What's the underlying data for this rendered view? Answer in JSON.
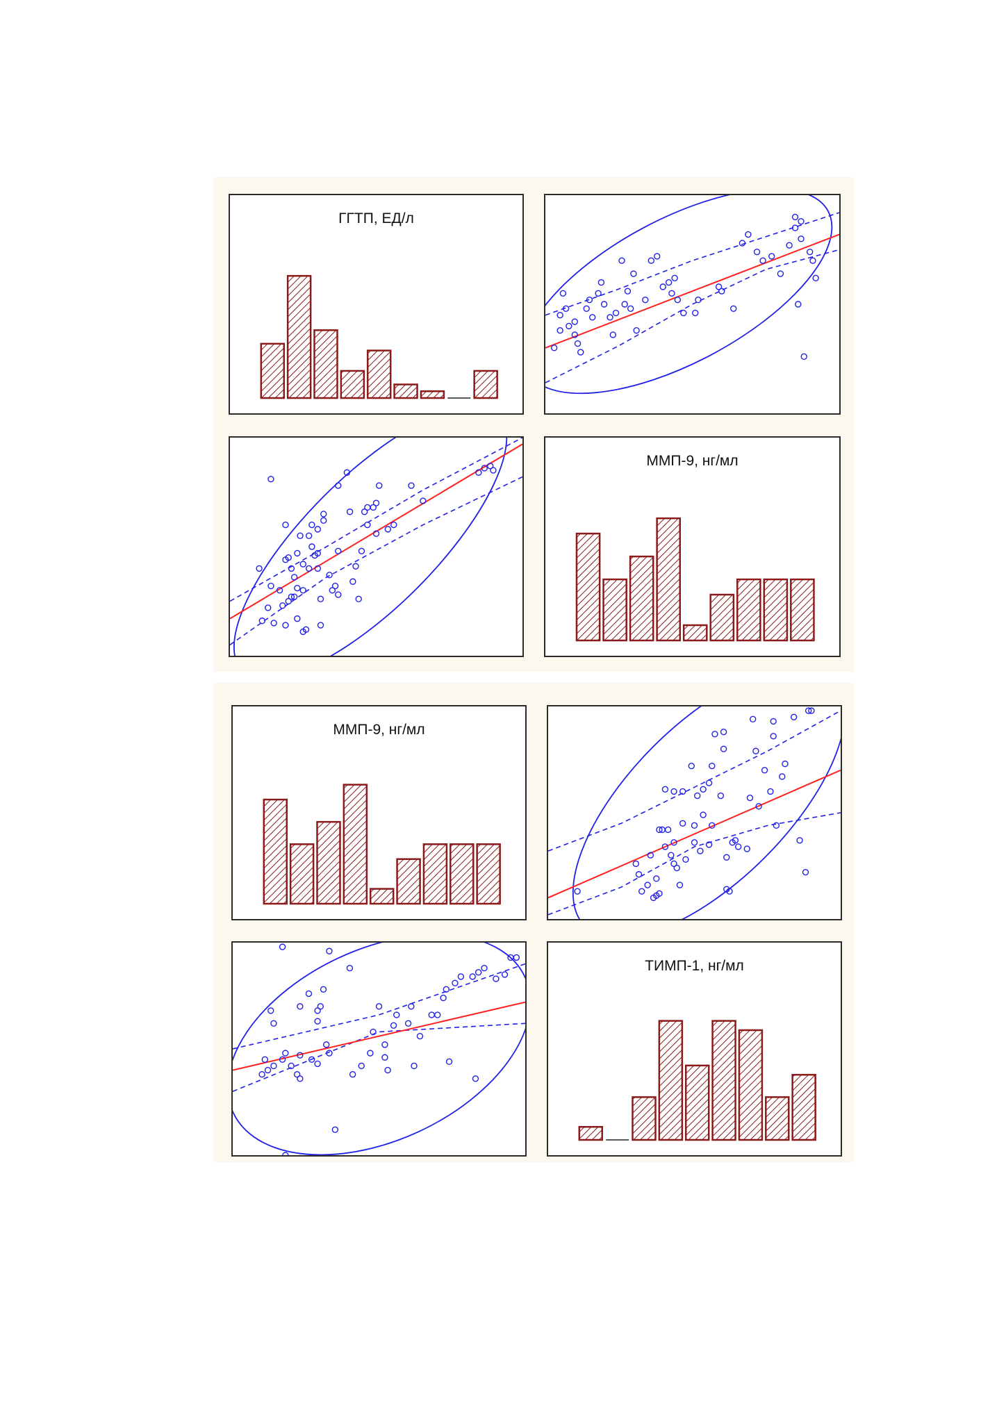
{
  "colors": {
    "bar_stroke": "#8b1a1a",
    "hatch": "#8b1a1a",
    "point": "#2020e8",
    "regression": "#ff2020",
    "confidence_band": "#2020e8",
    "ellipse": "#2020e8",
    "panel_border": "#2b2b2b",
    "figure_background": "#fdf8ef"
  },
  "chart_data": [
    {
      "figure": 1,
      "type": "bar",
      "panel": "histogram",
      "title": "ГГТП, ЕД/л",
      "bar_fill": "hatched",
      "values": [
        4,
        9,
        5,
        2,
        3.5,
        1,
        0.5,
        0,
        2
      ]
    },
    {
      "figure": 1,
      "type": "scatter",
      "panel": "x-ГГТП-y-ММП-9",
      "xlim": [
        0,
        100
      ],
      "ylim": [
        0,
        100
      ],
      "points": [
        [
          3,
          30
        ],
        [
          5,
          38
        ],
        [
          5,
          45
        ],
        [
          6,
          55
        ],
        [
          7,
          48
        ],
        [
          8,
          40
        ],
        [
          10,
          42
        ],
        [
          10,
          36
        ],
        [
          11,
          32
        ],
        [
          12,
          28
        ],
        [
          14,
          48
        ],
        [
          15,
          52
        ],
        [
          16,
          44
        ],
        [
          18,
          55
        ],
        [
          19,
          60
        ],
        [
          20,
          50
        ],
        [
          22,
          44
        ],
        [
          23,
          36
        ],
        [
          24,
          46
        ],
        [
          26,
          70
        ],
        [
          27,
          50
        ],
        [
          28,
          56
        ],
        [
          29,
          48
        ],
        [
          30,
          64
        ],
        [
          31,
          38
        ],
        [
          34,
          52
        ],
        [
          36,
          70
        ],
        [
          38,
          72
        ],
        [
          40,
          58
        ],
        [
          42,
          60
        ],
        [
          43,
          55
        ],
        [
          44,
          62
        ],
        [
          45,
          52
        ],
        [
          47,
          46
        ],
        [
          51,
          46
        ],
        [
          52,
          52
        ],
        [
          59,
          58
        ],
        [
          60,
          56
        ],
        [
          64,
          48
        ],
        [
          67,
          78
        ],
        [
          69,
          82
        ],
        [
          72,
          74
        ],
        [
          74,
          70
        ],
        [
          77,
          72
        ],
        [
          80,
          64
        ],
        [
          83,
          77
        ],
        [
          85,
          85
        ],
        [
          86,
          50
        ],
        [
          87,
          80
        ],
        [
          88,
          26
        ],
        [
          90,
          74
        ],
        [
          91,
          70
        ],
        [
          92,
          62
        ],
        [
          87,
          88
        ],
        [
          85,
          90
        ]
      ],
      "regression": [
        [
          0,
          30
        ],
        [
          100,
          82
        ]
      ],
      "band_upper": [
        [
          0,
          45
        ],
        [
          25,
          57
        ],
        [
          50,
          70
        ],
        [
          75,
          81
        ],
        [
          100,
          92
        ]
      ],
      "band_lower": [
        [
          0,
          14
        ],
        [
          25,
          31
        ],
        [
          50,
          50
        ],
        [
          75,
          66
        ],
        [
          100,
          75
        ]
      ],
      "ellipse": {
        "center": [
          45,
          56
        ],
        "rx": 58,
        "ry": 33,
        "angle_deg": -28
      }
    },
    {
      "figure": 1,
      "type": "scatter",
      "panel": "x-ММП-9-y-ГГТП",
      "xlim": [
        0,
        100
      ],
      "ylim": [
        0,
        100
      ],
      "points": [
        [
          14,
          81
        ],
        [
          10,
          40
        ],
        [
          11,
          16
        ],
        [
          13,
          22
        ],
        [
          14,
          32
        ],
        [
          15,
          15
        ],
        [
          17,
          30
        ],
        [
          18,
          23
        ],
        [
          19,
          14
        ],
        [
          19,
          44
        ],
        [
          19,
          60
        ],
        [
          20,
          45
        ],
        [
          20,
          25
        ],
        [
          21,
          27
        ],
        [
          21,
          40
        ],
        [
          22,
          36
        ],
        [
          22,
          27
        ],
        [
          23,
          31
        ],
        [
          23,
          47
        ],
        [
          23,
          17
        ],
        [
          24,
          55
        ],
        [
          25,
          30
        ],
        [
          25,
          42
        ],
        [
          25,
          11
        ],
        [
          26,
          12
        ],
        [
          27,
          55
        ],
        [
          27,
          40
        ],
        [
          28,
          50
        ],
        [
          28,
          60
        ],
        [
          29,
          46
        ],
        [
          30,
          58
        ],
        [
          30,
          47
        ],
        [
          30,
          40
        ],
        [
          31,
          26
        ],
        [
          31,
          14
        ],
        [
          32,
          62
        ],
        [
          32,
          65
        ],
        [
          34,
          37
        ],
        [
          35,
          30
        ],
        [
          36,
          32
        ],
        [
          37,
          28
        ],
        [
          37,
          48
        ],
        [
          37,
          78
        ],
        [
          40,
          84
        ],
        [
          41,
          66
        ],
        [
          42,
          34
        ],
        [
          43,
          41
        ],
        [
          44,
          26
        ],
        [
          45,
          48
        ],
        [
          46,
          66
        ],
        [
          47,
          60
        ],
        [
          47,
          68
        ],
        [
          49,
          68
        ],
        [
          50,
          56
        ],
        [
          50,
          70
        ],
        [
          51,
          78
        ],
        [
          54,
          58
        ],
        [
          56,
          60
        ],
        [
          62,
          78
        ],
        [
          66,
          71
        ],
        [
          85,
          84
        ],
        [
          87,
          86
        ],
        [
          89,
          87
        ],
        [
          90,
          85
        ]
      ],
      "regression": [
        [
          0,
          17
        ],
        [
          100,
          97
        ]
      ],
      "band_upper": [
        [
          0,
          25
        ],
        [
          33,
          50
        ],
        [
          66,
          76
        ],
        [
          100,
          100
        ]
      ],
      "band_lower": [
        [
          0,
          5
        ],
        [
          33,
          36
        ],
        [
          66,
          60
        ],
        [
          100,
          82
        ]
      ],
      "ellipse": {
        "center": [
          48,
          52
        ],
        "rx": 62,
        "ry": 30,
        "angle_deg": -45
      }
    },
    {
      "figure": 1,
      "type": "bar",
      "panel": "histogram",
      "title": "ММП-9, нг/мл",
      "bar_fill": "hatched",
      "values": [
        7,
        4,
        5.5,
        8,
        1,
        3,
        4,
        4,
        4
      ]
    },
    {
      "figure": 2,
      "type": "bar",
      "panel": "histogram",
      "title": "ММП-9, нг/мл",
      "bar_fill": "hatched",
      "values": [
        7,
        4,
        5.5,
        8,
        1,
        3,
        4,
        4,
        4
      ]
    },
    {
      "figure": 2,
      "type": "scatter",
      "panel": "x-ММП-9-y-ТИМП-1",
      "xlim": [
        0,
        100
      ],
      "ylim": [
        0,
        100
      ],
      "points": [
        [
          10,
          13
        ],
        [
          30,
          26
        ],
        [
          31,
          21
        ],
        [
          32,
          13
        ],
        [
          34,
          16
        ],
        [
          35,
          30
        ],
        [
          36,
          10
        ],
        [
          37,
          19
        ],
        [
          37,
          11
        ],
        [
          38,
          12
        ],
        [
          38,
          42
        ],
        [
          39,
          42
        ],
        [
          40,
          34
        ],
        [
          40,
          61
        ],
        [
          41,
          42
        ],
        [
          42,
          30
        ],
        [
          43,
          26
        ],
        [
          43,
          60
        ],
        [
          43,
          36
        ],
        [
          44,
          24
        ],
        [
          45,
          16
        ],
        [
          46,
          45
        ],
        [
          46,
          60
        ],
        [
          47,
          28
        ],
        [
          49,
          72
        ],
        [
          50,
          36
        ],
        [
          50,
          44
        ],
        [
          51,
          58
        ],
        [
          52,
          32
        ],
        [
          53,
          61
        ],
        [
          53,
          49
        ],
        [
          55,
          64
        ],
        [
          55,
          35
        ],
        [
          56,
          44
        ],
        [
          56,
          72
        ],
        [
          57,
          87
        ],
        [
          59,
          58
        ],
        [
          60,
          80
        ],
        [
          60,
          88
        ],
        [
          61,
          14
        ],
        [
          61,
          29
        ],
        [
          62,
          13
        ],
        [
          63,
          36
        ],
        [
          64,
          37
        ],
        [
          65,
          34
        ],
        [
          68,
          33
        ],
        [
          69,
          57
        ],
        [
          70,
          94
        ],
        [
          71,
          79
        ],
        [
          72,
          53
        ],
        [
          74,
          70
        ],
        [
          76,
          60
        ],
        [
          77,
          86
        ],
        [
          77,
          93
        ],
        [
          78,
          44
        ],
        [
          80,
          67
        ],
        [
          81,
          73
        ],
        [
          84,
          95
        ],
        [
          86,
          37
        ],
        [
          88,
          22
        ],
        [
          89,
          98
        ],
        [
          90,
          98
        ]
      ],
      "regression": [
        [
          0,
          10
        ],
        [
          100,
          70
        ]
      ],
      "band_upper": [
        [
          0,
          32
        ],
        [
          25,
          45
        ],
        [
          50,
          62
        ],
        [
          75,
          79
        ],
        [
          100,
          98
        ]
      ],
      "band_lower": [
        [
          0,
          2
        ],
        [
          25,
          15
        ],
        [
          50,
          34
        ],
        [
          75,
          44
        ],
        [
          100,
          50
        ]
      ],
      "ellipse": {
        "center": [
          55,
          55
        ],
        "rx": 60,
        "ry": 37,
        "angle_deg": -45
      }
    },
    {
      "figure": 2,
      "type": "scatter",
      "panel": "x-ТИМП-1-y-ММП-9",
      "xlim": [
        0,
        100
      ],
      "ylim": [
        0,
        100
      ],
      "points": [
        [
          14,
          62
        ],
        [
          13,
          68
        ],
        [
          17,
          98
        ],
        [
          33,
          48
        ],
        [
          35,
          12
        ],
        [
          11,
          45
        ],
        [
          10,
          38
        ],
        [
          12,
          40
        ],
        [
          14,
          42
        ],
        [
          17,
          45
        ],
        [
          18,
          48
        ],
        [
          20,
          42
        ],
        [
          22,
          38
        ],
        [
          23,
          36
        ],
        [
          23,
          70
        ],
        [
          23,
          47
        ],
        [
          27,
          45
        ],
        [
          26,
          76
        ],
        [
          29,
          43
        ],
        [
          29,
          68
        ],
        [
          29,
          63
        ],
        [
          31,
          78
        ],
        [
          32,
          52
        ],
        [
          33,
          96
        ],
        [
          40,
          88
        ],
        [
          41,
          38
        ],
        [
          44,
          42
        ],
        [
          47,
          48
        ],
        [
          48,
          58
        ],
        [
          50,
          70
        ],
        [
          52,
          52
        ],
        [
          53,
          40
        ],
        [
          55,
          61
        ],
        [
          56,
          66
        ],
        [
          60,
          62
        ],
        [
          61,
          70
        ],
        [
          62,
          42
        ],
        [
          64,
          56
        ],
        [
          68,
          66
        ],
        [
          70,
          66
        ],
        [
          72,
          74
        ],
        [
          73,
          78
        ],
        [
          74,
          44
        ],
        [
          76,
          81
        ],
        [
          78,
          84
        ],
        [
          82,
          84
        ],
        [
          84,
          86
        ],
        [
          86,
          88
        ],
        [
          90,
          83
        ],
        [
          93,
          85
        ],
        [
          95,
          93
        ],
        [
          97,
          93
        ],
        [
          83,
          36
        ],
        [
          52,
          46
        ],
        [
          30,
          70
        ],
        [
          18,
          0
        ]
      ],
      "regression": [
        [
          0,
          40
        ],
        [
          100,
          72
        ]
      ],
      "band_upper": [
        [
          0,
          50
        ],
        [
          50,
          66
        ],
        [
          100,
          90
        ]
      ],
      "band_lower": [
        [
          0,
          30
        ],
        [
          50,
          58
        ],
        [
          100,
          62
        ]
      ],
      "ellipse": {
        "center": [
          50,
          52
        ],
        "rx": 55,
        "ry": 45,
        "angle_deg": -25
      }
    },
    {
      "figure": 2,
      "type": "bar",
      "panel": "histogram",
      "title": "ТИМП-1, нг/мл",
      "bar_fill": "hatched",
      "values": [
        0.7,
        0,
        2.3,
        6.4,
        4,
        6.4,
        5.9,
        2.3,
        3.5
      ]
    }
  ]
}
